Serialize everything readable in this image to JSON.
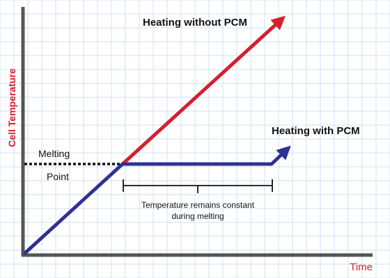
{
  "axes": {
    "ylabel": "Cell Temperature",
    "xlabel": "Time",
    "label_color": "#d3202f"
  },
  "annotations": {
    "without_pcm": "Heating without PCM",
    "with_pcm": "Heating with PCM",
    "melting_line1": "Melting",
    "melting_line2": "Point",
    "constant_line1": "Temperature remains constant",
    "constant_line2": "during melting"
  },
  "colors": {
    "without_pcm": "#d3202f",
    "with_pcm": "#2e3192",
    "axis": "#555555",
    "grid": "#cfe0f0",
    "melting_dots": "#111111",
    "bracket": "#111111"
  }
}
